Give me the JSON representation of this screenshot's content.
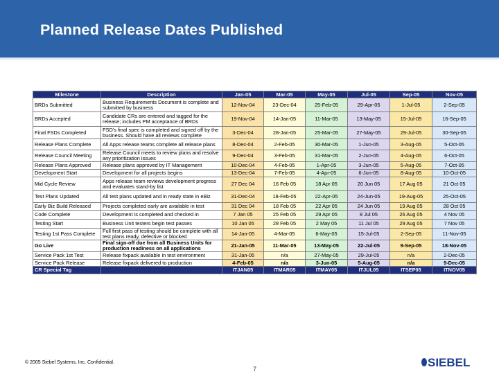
{
  "slide": {
    "title": "Planned Release Dates Published",
    "footer": "© 2005 Siebel Systems, Inc. Confidential.",
    "page_number": "7",
    "logo_text": "SIEBEL"
  },
  "table": {
    "headers": [
      "Milestone",
      "Description",
      "Jan-05",
      "Mar-05",
      "May-05",
      "Jul-05",
      "Sep-05",
      "Nov-05"
    ],
    "rows": [
      {
        "milestone": "BRDs Submitted",
        "description": "Business Requirements Document is complete and submitted by business",
        "dates": [
          "12-Nov-04",
          "23-Dec-04",
          "25-Feb-05",
          "29-Apr-05",
          "1-Jul-05",
          "2-Sep-05"
        ]
      },
      {
        "milestone": "BRDs Accepted",
        "description": "Candidate CRs are entered and tagged for the release; includes PM acceptance of BRDs",
        "dates": [
          "19-Nov-04",
          "14-Jan-05",
          "11-Mar-05",
          "13-May-05",
          "15-Jul-05",
          "16-Sep-05"
        ]
      },
      {
        "milestone": "Final FSDs Completed",
        "description": "FSD's final spec is completed and signed off by the business. Should have all reviews complete",
        "dates": [
          "3-Dec-04",
          "28-Jan-05",
          "25-Mar-05",
          "27-May-05",
          "29-Jul-05",
          "30-Sep-05"
        ]
      },
      {
        "milestone": "Release Plans Complete",
        "description": "All Apps release teams complete all release plans",
        "dates": [
          "8-Dec-04",
          "2-Feb-05",
          "30-Mar-05",
          "1-Jun-05",
          "3-Aug-05",
          "5-Oct-05"
        ]
      },
      {
        "milestone": "Release Council Meeting",
        "description": "Release Council meets to review plans and resolve any prioritization issues",
        "dates": [
          "9-Dec-04",
          "3-Feb-05",
          "31-Mar-05",
          "2-Jun-05",
          "4-Aug-05",
          "6-Oct-05"
        ]
      },
      {
        "milestone": "Release Plans Approved",
        "description": "Release plans approved by IT Management",
        "dates": [
          "10-Dec-04",
          "4-Feb-05",
          "1-Apr-05",
          "3-Jun-05",
          "5-Aug-05",
          "7-Oct-05"
        ]
      },
      {
        "milestone": "Development Start",
        "description": "Development for all projects begins",
        "dates": [
          "13-Dec-04",
          "7-Feb-05",
          "4-Apr-05",
          "6-Jun-05",
          "8-Aug-05",
          "10-Oct-05"
        ]
      },
      {
        "milestone": "Mid Cycle Review",
        "description": "Apps release team reviews development progress and evaluates stand-by list",
        "dates": [
          "27 Dec 04",
          "16 Feb 05",
          "18 Apr 05",
          "20 Jun 05",
          "17 Aug 05",
          "21 Oct 05"
        ]
      },
      {
        "milestone": "Test Plans Updated",
        "description": "All test plans updated and in ready state in eBiz",
        "dates": [
          "31-Dec-04",
          "18-Feb-05",
          "22-Apr-05",
          "24-Jun-05",
          "19-Aug-05",
          "25-Oct-05"
        ]
      },
      {
        "milestone": "Early Biz Build Released",
        "description": "Projects completed early are available in test",
        "dates": [
          "31 Dec 04",
          "18 Feb 05",
          "22 Apr 05",
          "24 Jun 05",
          "19 Aug 05",
          "28 Oct 05"
        ]
      },
      {
        "milestone": "Code Complete",
        "description": "Development is completed and checked in",
        "dates": [
          "7 Jan 05",
          "25 Feb 05",
          "29 Apr 05",
          "8 Jul 05",
          "26 Aug 05",
          "4 Nov 05"
        ]
      },
      {
        "milestone": "Testing Start",
        "description": "Business Unit testers begin test passes",
        "dates": [
          "10 Jan 05",
          "28 Feb 05",
          "2 May 05",
          "11 Jul 05",
          "29 Aug 05",
          "7 Nov 05"
        ]
      },
      {
        "milestone": "Testing 1st Pass Complete",
        "description": "Full first pass of testing should be complete with all test plans ready, defective or blocked",
        "dates": [
          "14-Jan-05",
          "4-Mar-05",
          "6-May-05",
          "15-Jul-05",
          "2-Sep-05",
          "11-Nov-05"
        ]
      },
      {
        "milestone": "Go Live",
        "description": "Final sign-off due from all Business Units for production readiness on all applications",
        "dates": [
          "21-Jan-05",
          "11-Mar-05",
          "13-May-05",
          "22-Jul-05",
          "9-Sep-05",
          "18-Nov-05"
        ],
        "bold": true
      },
      {
        "milestone": "Service Pack 1st Test",
        "description": "Release fixpack available in test environment",
        "dates": [
          "31-Jan-05",
          "n/a",
          "27-May-05",
          "29-Jul-05",
          "n/a",
          "2-Dec-05"
        ]
      },
      {
        "milestone": "Service Pack Release",
        "description": "Release fixpack delivered to production",
        "dates": [
          "4-Feb-05",
          "n/a",
          "3-Jun-05",
          "5-Aug-05",
          "n/a",
          "9-Dec-05"
        ],
        "bold_dates": true
      },
      {
        "milestone": "CR Special Tag",
        "description": "",
        "dates": [
          "ITJAN05",
          "ITMAR05",
          "ITMAY05",
          "ITJUL05",
          "ITSEP05",
          "ITNOV05"
        ],
        "tag": true
      }
    ]
  },
  "colors": {
    "banner": "#2d63a8",
    "header": "#1f2f7d",
    "columns": [
      "#fbe2a8",
      "#fefbd8",
      "#d6f2d6",
      "#dcd6ee",
      "#fbe8a6",
      "#d8e8f8"
    ]
  }
}
